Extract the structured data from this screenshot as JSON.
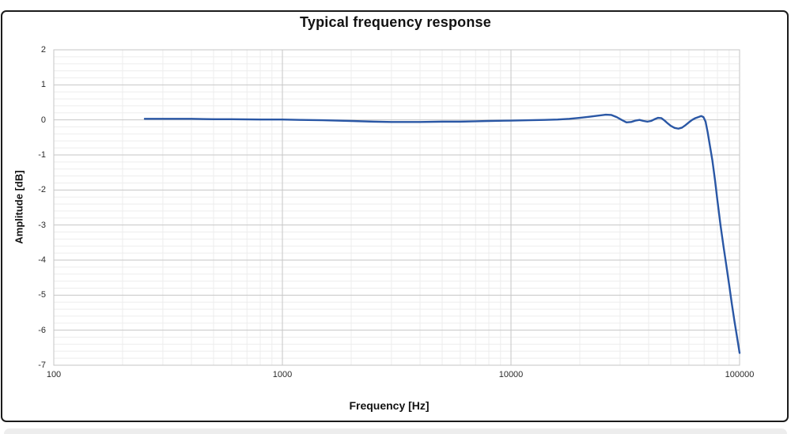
{
  "page": {
    "background_color": "#ffffff",
    "card_border_color": "#1b1b1b"
  },
  "chart_data": {
    "type": "line",
    "title": "Typical frequency response",
    "xlabel": "Frequency [Hz]",
    "ylabel": "Amplitude [dB]",
    "x_scale": "log",
    "x_range": [
      100,
      100000
    ],
    "x_ticks": [
      100,
      1000,
      10000,
      100000
    ],
    "y_range": [
      -7,
      2
    ],
    "y_ticks": [
      2,
      1,
      0,
      -1,
      -2,
      -3,
      -4,
      -5,
      -6,
      -7
    ],
    "y_minor_step": 0.2,
    "grid": "major+minor",
    "legend_position": "none",
    "line_color": "#2a57a5",
    "major_grid_color": "#c6c6c6",
    "minor_grid_color": "#ededed",
    "series": [
      {
        "name": "Typical frequency response",
        "points": [
          [
            250,
            0.03
          ],
          [
            300,
            0.03
          ],
          [
            350,
            0.03
          ],
          [
            400,
            0.03
          ],
          [
            500,
            0.02
          ],
          [
            600,
            0.02
          ],
          [
            800,
            0.01
          ],
          [
            1000,
            0.01
          ],
          [
            1200,
            0.0
          ],
          [
            1500,
            -0.01
          ],
          [
            2000,
            -0.03
          ],
          [
            2500,
            -0.05
          ],
          [
            3000,
            -0.06
          ],
          [
            3500,
            -0.06
          ],
          [
            4000,
            -0.06
          ],
          [
            5000,
            -0.05
          ],
          [
            6000,
            -0.05
          ],
          [
            7000,
            -0.04
          ],
          [
            8000,
            -0.03
          ],
          [
            10000,
            -0.02
          ],
          [
            12000,
            -0.01
          ],
          [
            14000,
            0.0
          ],
          [
            16000,
            0.01
          ],
          [
            18000,
            0.03
          ],
          [
            20000,
            0.06
          ],
          [
            22000,
            0.09
          ],
          [
            24000,
            0.12
          ],
          [
            26000,
            0.15
          ],
          [
            27500,
            0.14
          ],
          [
            29000,
            0.08
          ],
          [
            30500,
            0.0
          ],
          [
            32000,
            -0.07
          ],
          [
            33500,
            -0.06
          ],
          [
            35000,
            -0.02
          ],
          [
            36500,
            0.0
          ],
          [
            38000,
            -0.03
          ],
          [
            39500,
            -0.05
          ],
          [
            41000,
            -0.03
          ],
          [
            42500,
            0.02
          ],
          [
            44000,
            0.06
          ],
          [
            45500,
            0.05
          ],
          [
            47000,
            -0.02
          ],
          [
            48500,
            -0.1
          ],
          [
            50000,
            -0.17
          ],
          [
            52000,
            -0.23
          ],
          [
            54000,
            -0.25
          ],
          [
            56000,
            -0.22
          ],
          [
            58000,
            -0.15
          ],
          [
            60000,
            -0.07
          ],
          [
            62000,
            0.0
          ],
          [
            64000,
            0.05
          ],
          [
            66000,
            0.08
          ],
          [
            68000,
            0.11
          ],
          [
            69500,
            0.08
          ],
          [
            71000,
            -0.05
          ],
          [
            72500,
            -0.35
          ],
          [
            74000,
            -0.7
          ],
          [
            76000,
            -1.15
          ],
          [
            78000,
            -1.7
          ],
          [
            80000,
            -2.3
          ],
          [
            82500,
            -3.0
          ],
          [
            85000,
            -3.6
          ],
          [
            87500,
            -4.15
          ],
          [
            90000,
            -4.7
          ],
          [
            92500,
            -5.25
          ],
          [
            95000,
            -5.75
          ],
          [
            97500,
            -6.2
          ],
          [
            100000,
            -6.65
          ]
        ]
      }
    ]
  }
}
